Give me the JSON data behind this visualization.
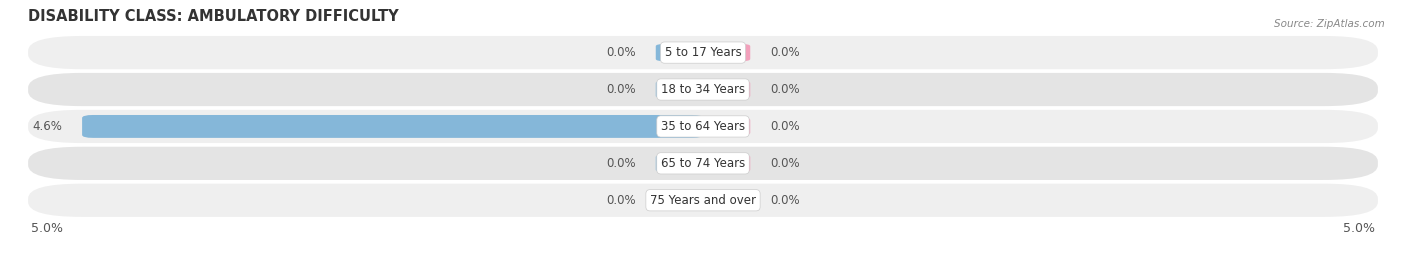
{
  "title": "DISABILITY CLASS: AMBULATORY DIFFICULTY",
  "source": "Source: ZipAtlas.com",
  "categories": [
    "5 to 17 Years",
    "18 to 34 Years",
    "35 to 64 Years",
    "65 to 74 Years",
    "75 Years and over"
  ],
  "male_values": [
    0.0,
    0.0,
    4.6,
    0.0,
    0.0
  ],
  "female_values": [
    0.0,
    0.0,
    0.0,
    0.0,
    0.0
  ],
  "male_color": "#85b7d9",
  "female_color": "#f2a0bb",
  "row_colors": [
    "#efefef",
    "#e4e4e4"
  ],
  "xlim": 5.0,
  "title_fontsize": 10.5,
  "label_fontsize": 8.5,
  "tick_fontsize": 9,
  "bar_height": 0.62,
  "figsize": [
    14.06,
    2.69
  ],
  "dpi": 100
}
